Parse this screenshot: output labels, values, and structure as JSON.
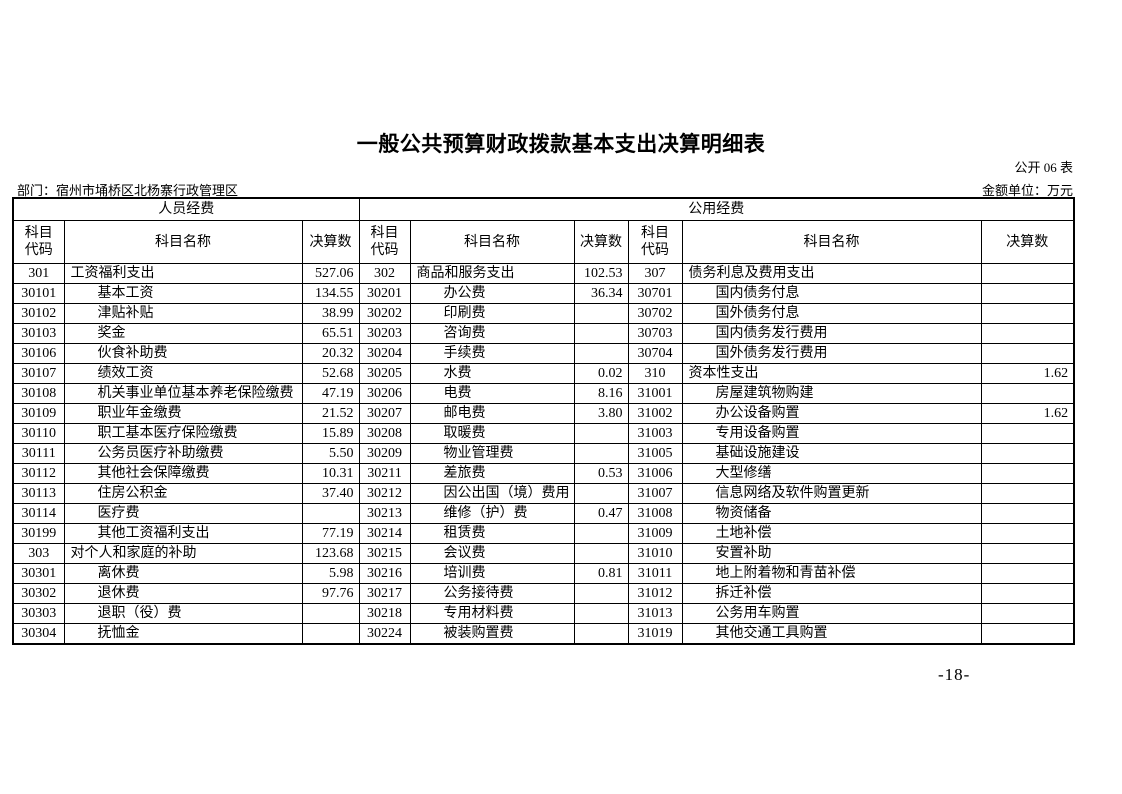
{
  "page": {
    "title": "一般公共预算财政拨款基本支出决算明细表",
    "table_code": "公开 06 表",
    "department": "部门：宿州市埇桥区北杨寨行政管理区",
    "unit": "金额单位：万元",
    "page_number": "-18-"
  },
  "table": {
    "sections": [
      "人员经费",
      "公用经费"
    ],
    "col_headers": [
      "科目\n代码",
      "科目名称",
      "决算数",
      "科目\n代码",
      "科目名称",
      "决算数",
      "科目\n代码",
      "科目名称",
      "决算数"
    ],
    "rows": [
      [
        "301",
        "工资福利支出",
        "527.06",
        "302",
        "商品和服务支出",
        "102.53",
        "307",
        "债务利息及费用支出",
        ""
      ],
      [
        "30101",
        "基本工资",
        "134.55",
        "30201",
        "办公费",
        "36.34",
        "30701",
        "国内债务付息",
        ""
      ],
      [
        "30102",
        "津贴补贴",
        "38.99",
        "30202",
        "印刷费",
        "",
        "30702",
        "国外债务付息",
        ""
      ],
      [
        "30103",
        "奖金",
        "65.51",
        "30203",
        "咨询费",
        "",
        "30703",
        "国内债务发行费用",
        ""
      ],
      [
        "30106",
        "伙食补助费",
        "20.32",
        "30204",
        "手续费",
        "",
        "30704",
        "国外债务发行费用",
        ""
      ],
      [
        "30107",
        "绩效工资",
        "52.68",
        "30205",
        "水费",
        "0.02",
        "310",
        "资本性支出",
        "1.62"
      ],
      [
        "30108",
        "机关事业单位基本养老保险缴费",
        "47.19",
        "30206",
        "电费",
        "8.16",
        "31001",
        "房屋建筑物购建",
        ""
      ],
      [
        "30109",
        "职业年金缴费",
        "21.52",
        "30207",
        "邮电费",
        "3.80",
        "31002",
        "办公设备购置",
        "1.62"
      ],
      [
        "30110",
        "职工基本医疗保险缴费",
        "15.89",
        "30208",
        "取暖费",
        "",
        "31003",
        "专用设备购置",
        ""
      ],
      [
        "30111",
        "公务员医疗补助缴费",
        "5.50",
        "30209",
        "物业管理费",
        "",
        "31005",
        "基础设施建设",
        ""
      ],
      [
        "30112",
        "其他社会保障缴费",
        "10.31",
        "30211",
        "差旅费",
        "0.53",
        "31006",
        "大型修缮",
        ""
      ],
      [
        "30113",
        "住房公积金",
        "37.40",
        "30212",
        "因公出国（境）费用",
        "",
        "31007",
        "信息网络及软件购置更新",
        ""
      ],
      [
        "30114",
        "医疗费",
        "",
        "30213",
        "维修（护）费",
        "0.47",
        "31008",
        "物资储备",
        ""
      ],
      [
        "30199",
        "其他工资福利支出",
        "77.19",
        "30214",
        "租赁费",
        "",
        "31009",
        "土地补偿",
        ""
      ],
      [
        "303",
        "对个人和家庭的补助",
        "123.68",
        "30215",
        "会议费",
        "",
        "31010",
        "安置补助",
        ""
      ],
      [
        "30301",
        "离休费",
        "5.98",
        "30216",
        "培训费",
        "0.81",
        "31011",
        "地上附着物和青苗补偿",
        ""
      ],
      [
        "30302",
        "退休费",
        "97.76",
        "30217",
        "公务接待费",
        "",
        "31012",
        "拆迁补偿",
        ""
      ],
      [
        "30303",
        "退职（役）费",
        "",
        "30218",
        "专用材料费",
        "",
        "31013",
        "公务用车购置",
        ""
      ],
      [
        "30304",
        "抚恤金",
        "",
        "30224",
        "被装购置费",
        "",
        "31019",
        "其他交通工具购置",
        ""
      ]
    ]
  }
}
